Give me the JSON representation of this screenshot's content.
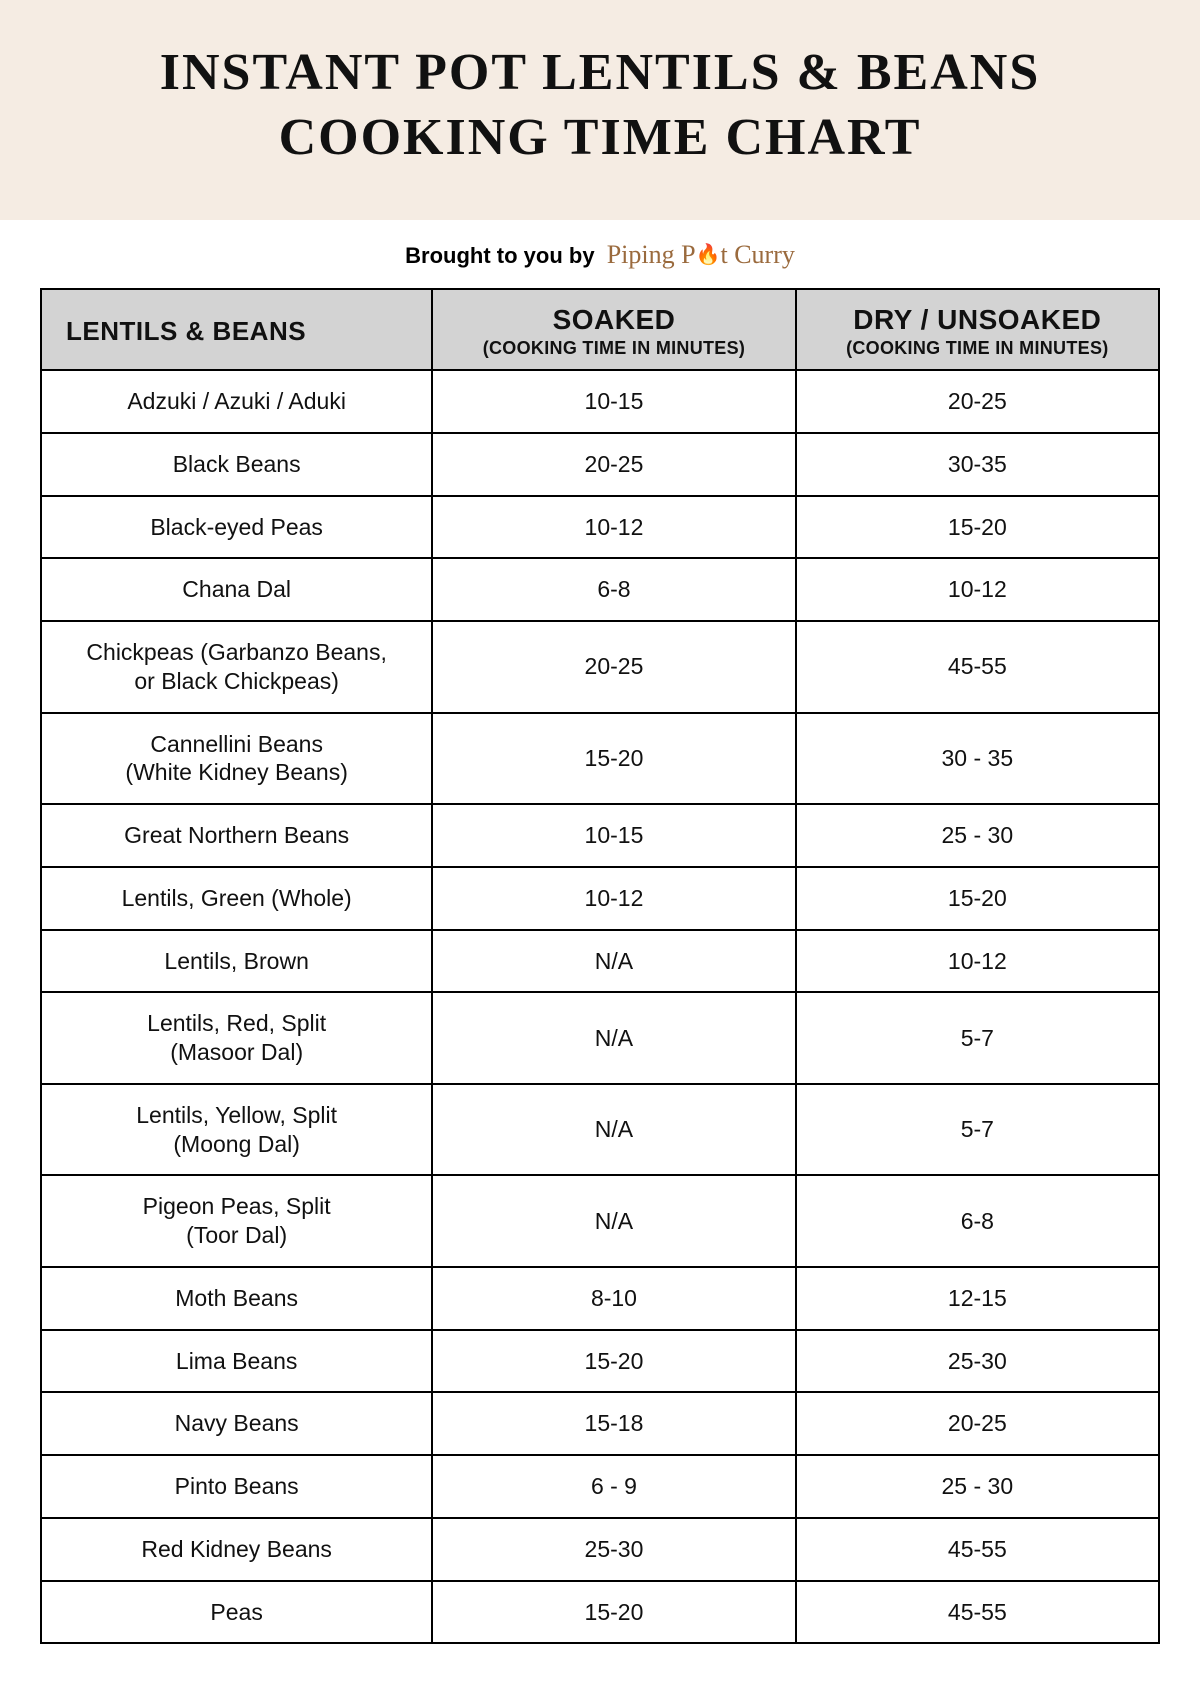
{
  "title_line1": "INSTANT POT LENTILS & BEANS",
  "title_line2": "COOKING TIME CHART",
  "byline_prefix": "Brought to you by",
  "brand_part1": "Piping P",
  "brand_flame": "🔥",
  "brand_part2": "t Curry",
  "headers": {
    "col1": "LENTILS & BEANS",
    "col2_main": "SOAKED",
    "col2_sub": "(COOKING TIME IN MINUTES)",
    "col3_main": "DRY / UNSOAKED",
    "col3_sub": "(COOKING TIME IN MINUTES)"
  },
  "rows": [
    {
      "name": "Adzuki / Azuki / Aduki",
      "soaked": "10-15",
      "dry": "20-25"
    },
    {
      "name": "Black Beans",
      "soaked": "20-25",
      "dry": "30-35"
    },
    {
      "name": "Black-eyed Peas",
      "soaked": "10-12",
      "dry": "15-20"
    },
    {
      "name": "Chana Dal",
      "soaked": "6-8",
      "dry": "10-12"
    },
    {
      "name": "Chickpeas (Garbanzo Beans,\nor Black Chickpeas)",
      "soaked": "20-25",
      "dry": "45-55"
    },
    {
      "name": "Cannellini Beans\n(White Kidney Beans)",
      "soaked": "15-20",
      "dry": "30 - 35"
    },
    {
      "name": "Great Northern Beans",
      "soaked": "10-15",
      "dry": "25 - 30"
    },
    {
      "name": "Lentils, Green (Whole)",
      "soaked": "10-12",
      "dry": "15-20"
    },
    {
      "name": "Lentils, Brown",
      "soaked": "N/A",
      "dry": "10-12"
    },
    {
      "name": "Lentils, Red, Split\n(Masoor Dal)",
      "soaked": "N/A",
      "dry": "5-7"
    },
    {
      "name": "Lentils, Yellow, Split\n(Moong Dal)",
      "soaked": "N/A",
      "dry": "5-7"
    },
    {
      "name": "Pigeon Peas, Split\n(Toor Dal)",
      "soaked": "N/A",
      "dry": "6-8"
    },
    {
      "name": "Moth Beans",
      "soaked": "8-10",
      "dry": "12-15"
    },
    {
      "name": "Lima Beans",
      "soaked": "15-20",
      "dry": "25-30"
    },
    {
      "name": "Navy Beans",
      "soaked": "15-18",
      "dry": "20-25"
    },
    {
      "name": "Pinto Beans",
      "soaked": "6 - 9",
      "dry": "25 - 30"
    },
    {
      "name": "Red Kidney Beans",
      "soaked": "25-30",
      "dry": "45-55"
    },
    {
      "name": "Peas",
      "soaked": "15-20",
      "dry": "45-55"
    }
  ],
  "colors": {
    "banner_bg": "#f5ece3",
    "header_bg": "#d3d3d3",
    "border": "#000000",
    "brand": "#9a6a3d",
    "flame": "#e07b1f",
    "page_bg": "#ffffff"
  }
}
